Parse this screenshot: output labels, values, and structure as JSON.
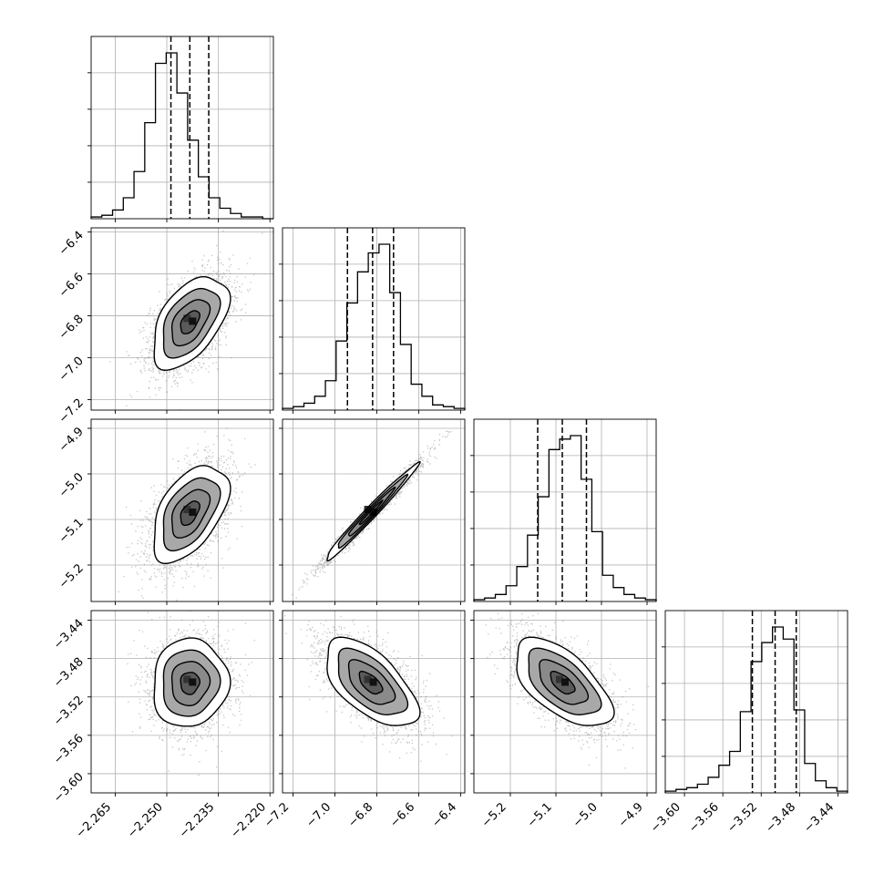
{
  "chart_data": {
    "type": "corner",
    "parameters": 4,
    "axes": [
      {
        "ticks": [
          -2.265,
          -2.25,
          -2.235,
          -2.22
        ],
        "tick_labels": [
          "−2.265",
          "−2.250",
          "−2.235",
          "−2.220"
        ],
        "range": [
          -2.272,
          -2.219
        ]
      },
      {
        "ticks": [
          -7.2,
          -7.0,
          -6.8,
          -6.6,
          -6.4
        ],
        "tick_labels": [
          "−7.2",
          "−7.0",
          "−6.8",
          "−6.6",
          "−6.4"
        ],
        "range": [
          -7.25,
          -6.38
        ]
      },
      {
        "ticks": [
          -5.2,
          -5.1,
          -5.0,
          -4.9
        ],
        "tick_labels": [
          "−5.2",
          "−5.1",
          "−5.0",
          "−4.9"
        ],
        "range": [
          -5.28,
          -4.88
        ]
      },
      {
        "ticks": [
          -3.6,
          -3.56,
          -3.52,
          -3.48,
          -3.44
        ],
        "tick_labels": [
          "−3.60",
          "−3.56",
          "−3.52",
          "−3.48",
          "−3.44"
        ],
        "range": [
          -3.62,
          -3.43
        ]
      }
    ],
    "marginals": [
      {
        "param": 0,
        "quantiles": [
          -2.2488,
          -2.2433,
          -2.2378
        ],
        "bin_edges_range": [
          -2.272,
          -2.219
        ],
        "counts": [
          1,
          2,
          5,
          12,
          27,
          55,
          89,
          95,
          72,
          45,
          24,
          12,
          6,
          3,
          1,
          1,
          0
        ]
      },
      {
        "param": 1,
        "quantiles": [
          -6.94,
          -6.82,
          -6.72
        ],
        "bin_edges_range": [
          -7.25,
          -6.38
        ],
        "counts": [
          1,
          2,
          4,
          8,
          17,
          40,
          62,
          80,
          91,
          96,
          68,
          38,
          15,
          8,
          3,
          2,
          1
        ]
      },
      {
        "param": 2,
        "quantiles": [
          -5.14,
          -5.086,
          -5.033
        ],
        "bin_edges_range": [
          -5.28,
          -4.88
        ],
        "counts": [
          1,
          2,
          4,
          9,
          20,
          38,
          60,
          87,
          93,
          95,
          70,
          40,
          15,
          8,
          4,
          2,
          1
        ]
      },
      {
        "param": 3,
        "quantiles": [
          -3.5292,
          -3.5055,
          -3.4835
        ],
        "bin_edges_range": [
          -3.62,
          -3.43
        ],
        "counts": [
          1,
          2,
          3,
          5,
          9,
          16,
          24,
          47,
          76,
          87,
          96,
          89,
          48,
          17,
          7,
          3,
          1
        ]
      }
    ],
    "joints": [
      {
        "x": 0,
        "y": 1,
        "mean": [
          -2.2433,
          -6.83
        ],
        "sd": [
          0.0055,
          0.11
        ],
        "corr": 0.5,
        "levels": [
          0.5,
          1.0,
          1.5,
          2.0
        ]
      },
      {
        "x": 0,
        "y": 2,
        "mean": [
          -2.2433,
          -5.086
        ],
        "sd": [
          0.0055,
          0.053
        ],
        "corr": 0.5,
        "levels": [
          0.5,
          1.0,
          1.5,
          2.0
        ]
      },
      {
        "x": 1,
        "y": 2,
        "mean": [
          -6.83,
          -5.086
        ],
        "sd": [
          0.11,
          0.053
        ],
        "corr": 0.985,
        "levels": [
          0.5,
          1.0,
          1.5,
          2.0
        ]
      },
      {
        "x": 0,
        "y": 3,
        "mean": [
          -2.2433,
          -3.5055
        ],
        "sd": [
          0.0055,
          0.023
        ],
        "corr": 0.05,
        "levels": [
          0.5,
          1.0,
          1.5,
          2.0
        ]
      },
      {
        "x": 1,
        "y": 3,
        "mean": [
          -6.83,
          -3.5055
        ],
        "sd": [
          0.11,
          0.023
        ],
        "corr": -0.6,
        "levels": [
          0.5,
          1.0,
          1.5,
          2.0
        ]
      },
      {
        "x": 2,
        "y": 3,
        "mean": [
          -5.086,
          -3.5055
        ],
        "sd": [
          0.053,
          0.023
        ],
        "corr": -0.6,
        "levels": [
          0.5,
          1.0,
          1.5,
          2.0
        ]
      }
    ],
    "grid": true,
    "colors": {
      "line": "#000000",
      "grid": "#b0b0b0",
      "points": "#808080",
      "fill_light": "#c8c8c8",
      "fill_mid": "#8a8a8a",
      "fill_dark": "#333333"
    }
  }
}
